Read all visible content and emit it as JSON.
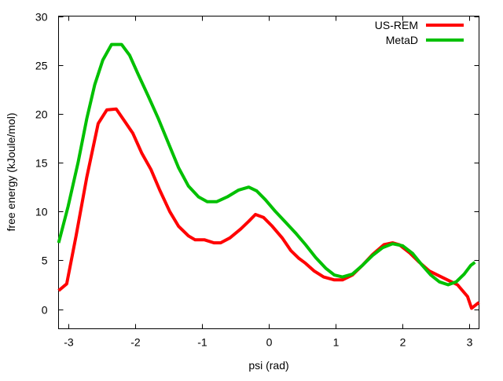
{
  "chart_data": {
    "type": "line",
    "title": "",
    "xlabel": "psi (rad)",
    "ylabel": "free energy (kJoule/mol)",
    "xlim": [
      -3.14159,
      3.14159
    ],
    "ylim": [
      -2,
      30
    ],
    "xticks": [
      -3,
      -2,
      -1,
      0,
      1,
      2,
      3
    ],
    "yticks": [
      0,
      5,
      10,
      15,
      20,
      25,
      30
    ],
    "grid": false,
    "legend": "top-right",
    "series": [
      {
        "name": "US-REM",
        "color": "#ff0000",
        "points": [
          [
            -3.14,
            1.9
          ],
          [
            -3.02,
            2.6
          ],
          [
            -2.88,
            7.5
          ],
          [
            -2.72,
            13.5
          ],
          [
            -2.55,
            19.0
          ],
          [
            -2.42,
            20.4
          ],
          [
            -2.28,
            20.5
          ],
          [
            -2.15,
            19.2
          ],
          [
            -2.03,
            18.0
          ],
          [
            -1.9,
            16.0
          ],
          [
            -1.76,
            14.3
          ],
          [
            -1.63,
            12.2
          ],
          [
            -1.48,
            10.0
          ],
          [
            -1.35,
            8.5
          ],
          [
            -1.2,
            7.5
          ],
          [
            -1.1,
            7.1
          ],
          [
            -0.96,
            7.1
          ],
          [
            -0.82,
            6.8
          ],
          [
            -0.72,
            6.8
          ],
          [
            -0.58,
            7.3
          ],
          [
            -0.42,
            8.2
          ],
          [
            -0.3,
            9.0
          ],
          [
            -0.2,
            9.7
          ],
          [
            -0.08,
            9.4
          ],
          [
            0.05,
            8.5
          ],
          [
            0.2,
            7.3
          ],
          [
            0.33,
            6.0
          ],
          [
            0.45,
            5.2
          ],
          [
            0.55,
            4.7
          ],
          [
            0.68,
            3.9
          ],
          [
            0.82,
            3.3
          ],
          [
            0.98,
            3.0
          ],
          [
            1.1,
            3.0
          ],
          [
            1.25,
            3.5
          ],
          [
            1.4,
            4.5
          ],
          [
            1.55,
            5.6
          ],
          [
            1.72,
            6.6
          ],
          [
            1.85,
            6.8
          ],
          [
            1.95,
            6.6
          ],
          [
            2.1,
            5.8
          ],
          [
            2.25,
            4.8
          ],
          [
            2.4,
            3.9
          ],
          [
            2.55,
            3.4
          ],
          [
            2.7,
            2.9
          ],
          [
            2.82,
            2.5
          ],
          [
            2.97,
            1.3
          ],
          [
            3.03,
            0.1
          ],
          [
            3.14,
            0.7
          ]
        ]
      },
      {
        "name": "MetaD",
        "color": "#00c000",
        "points": [
          [
            -3.14,
            6.8
          ],
          [
            -3.0,
            10.5
          ],
          [
            -2.85,
            15.0
          ],
          [
            -2.72,
            19.5
          ],
          [
            -2.6,
            23.0
          ],
          [
            -2.48,
            25.5
          ],
          [
            -2.35,
            27.1
          ],
          [
            -2.2,
            27.1
          ],
          [
            -2.08,
            26.0
          ],
          [
            -1.95,
            24.0
          ],
          [
            -1.8,
            21.8
          ],
          [
            -1.65,
            19.5
          ],
          [
            -1.5,
            17.0
          ],
          [
            -1.35,
            14.5
          ],
          [
            -1.2,
            12.6
          ],
          [
            -1.05,
            11.5
          ],
          [
            -0.92,
            11.0
          ],
          [
            -0.78,
            11.0
          ],
          [
            -0.62,
            11.5
          ],
          [
            -0.45,
            12.2
          ],
          [
            -0.3,
            12.5
          ],
          [
            -0.18,
            12.1
          ],
          [
            -0.05,
            11.2
          ],
          [
            0.1,
            10.0
          ],
          [
            0.25,
            8.9
          ],
          [
            0.4,
            7.8
          ],
          [
            0.55,
            6.6
          ],
          [
            0.7,
            5.3
          ],
          [
            0.85,
            4.2
          ],
          [
            0.98,
            3.5
          ],
          [
            1.1,
            3.3
          ],
          [
            1.25,
            3.6
          ],
          [
            1.4,
            4.5
          ],
          [
            1.55,
            5.5
          ],
          [
            1.7,
            6.3
          ],
          [
            1.85,
            6.7
          ],
          [
            2.0,
            6.5
          ],
          [
            2.15,
            5.7
          ],
          [
            2.28,
            4.6
          ],
          [
            2.42,
            3.5
          ],
          [
            2.55,
            2.8
          ],
          [
            2.68,
            2.5
          ],
          [
            2.8,
            2.8
          ],
          [
            2.92,
            3.6
          ],
          [
            3.02,
            4.5
          ],
          [
            3.08,
            4.8
          ]
        ]
      }
    ]
  }
}
